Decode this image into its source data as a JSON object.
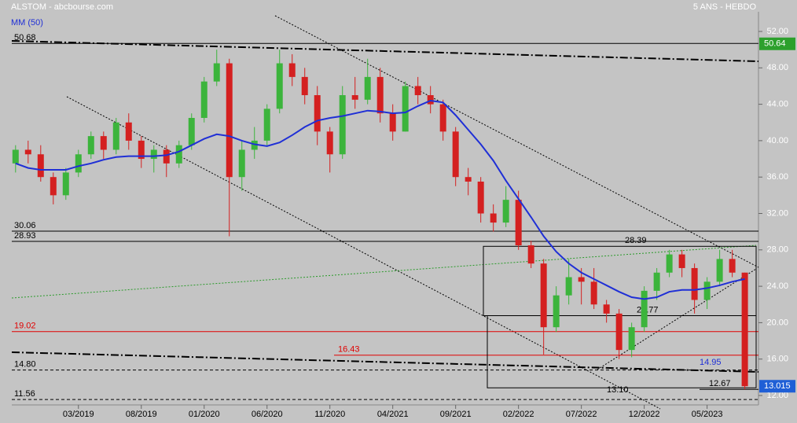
{
  "chart_data": {
    "type": "candlestick",
    "title": "ALSTOM - abcbourse.com",
    "subtitle": "5 ANS - HEBDO",
    "up_color": "#3cb43c",
    "down_color": "#d42020",
    "x": [
      -3,
      -2,
      -1,
      0,
      1,
      2,
      3,
      4,
      5,
      6,
      7,
      8,
      9,
      10,
      11,
      12,
      13,
      14,
      15,
      16,
      17,
      18,
      19,
      20,
      21,
      22,
      23,
      24,
      25,
      26,
      27,
      28,
      29,
      30,
      31,
      32,
      33,
      34,
      35,
      36,
      37,
      38,
      39,
      40,
      41,
      42,
      43,
      44,
      45,
      46,
      47,
      48,
      49,
      50,
      51,
      52,
      53,
      54,
      55
    ],
    "open": [
      37.5,
      39,
      38.5,
      36,
      34,
      36.5,
      38.5,
      40.5,
      39,
      42,
      40,
      38,
      39,
      37.5,
      39.5,
      42.5,
      46.5,
      48.5,
      36,
      39,
      40,
      43.5,
      48.5,
      47,
      45,
      41,
      38.5,
      45,
      44.5,
      47,
      43,
      41,
      46,
      45,
      44,
      41,
      36,
      35.5,
      32,
      31,
      33.5,
      28.5,
      26.5,
      19.5,
      23,
      25,
      24.5,
      22,
      21,
      17,
      19.5,
      23.5,
      25.5,
      27.5,
      26,
      22.5,
      24.5,
      27,
      25.5
    ],
    "high": [
      39.5,
      40,
      39.5,
      36.5,
      37,
      39,
      41,
      41,
      42.5,
      43,
      40.5,
      39.5,
      39.5,
      40,
      43,
      47,
      50,
      49,
      40,
      41.5,
      44,
      50,
      49.5,
      48,
      46,
      41.5,
      46,
      47,
      49,
      48,
      44,
      46.5,
      47,
      46,
      44.5,
      41.5,
      37,
      36,
      33,
      35,
      34.5,
      29,
      27,
      24,
      27,
      26,
      26,
      22.5,
      21.5,
      20,
      24,
      26,
      28,
      28,
      26.5,
      25,
      28,
      28,
      25.5
    ],
    "low": [
      36.5,
      37.5,
      35.5,
      33,
      33.5,
      36,
      38,
      38,
      38.5,
      39,
      37,
      36.5,
      36,
      37,
      39,
      42,
      46,
      29.5,
      34.5,
      38,
      39.5,
      43,
      46,
      44,
      39.5,
      36.5,
      38,
      43.5,
      44,
      42,
      40,
      41,
      44,
      43,
      40,
      35,
      34,
      31,
      30,
      30.5,
      28,
      26,
      16.5,
      19,
      22,
      22,
      21.5,
      20,
      16,
      16.2,
      19,
      22.5,
      25,
      25,
      21,
      21.5,
      24,
      25,
      12.67
    ],
    "close": [
      39,
      38.5,
      36,
      34,
      36.5,
      38.5,
      40.5,
      39,
      42,
      40,
      38,
      39,
      37.5,
      39.5,
      42.5,
      46.5,
      48.5,
      36,
      39,
      40,
      43.5,
      48.5,
      47,
      45,
      41,
      38.5,
      45,
      44.5,
      47,
      43,
      41,
      46,
      45,
      44,
      41,
      36,
      35.5,
      32,
      31,
      33.5,
      28.5,
      26.5,
      19.5,
      23,
      25,
      24.5,
      22,
      21,
      17,
      19.5,
      23.5,
      25.5,
      27.5,
      26,
      22.5,
      24.5,
      27,
      25.5,
      13.015
    ],
    "series": [
      {
        "name": "MM (50)",
        "color": "#1f2fd6",
        "values": [
          37.5,
          37,
          36.8,
          36.8,
          36.8,
          37.2,
          37.5,
          37.9,
          38.2,
          38.3,
          38.3,
          38.3,
          38.4,
          38.8,
          39.5,
          40.2,
          40.7,
          40.5,
          40,
          39.6,
          39.4,
          39.8,
          40.6,
          41.5,
          42.2,
          42.5,
          42.7,
          43,
          43.3,
          43.2,
          43,
          43.1,
          43.8,
          44.4,
          44.2,
          42.8,
          41.2,
          39.6,
          37.8,
          35.6,
          33.6,
          31.6,
          29.5,
          27.8,
          26.5,
          25.5,
          24.8,
          24.1,
          23.4,
          22.8,
          22.6,
          22.8,
          23.4,
          23.6,
          23.6,
          23.8,
          24.1,
          24.5,
          24.8
        ]
      }
    ],
    "xlim": [
      -3.3,
      55.9
    ],
    "xticks": [
      {
        "value": 2,
        "label": "03/2019"
      },
      {
        "value": 7,
        "label": "08/2019"
      },
      {
        "value": 12,
        "label": "01/2020"
      },
      {
        "value": 17,
        "label": "06/2020"
      },
      {
        "value": 22,
        "label": "11/2020"
      },
      {
        "value": 27,
        "label": "04/2021"
      },
      {
        "value": 32,
        "label": "09/2021"
      },
      {
        "value": 37,
        "label": "02/2022"
      },
      {
        "value": 42,
        "label": "07/2022"
      },
      {
        "value": 47,
        "label": "12/2022"
      },
      {
        "value": 52,
        "label": "05/2023"
      }
    ],
    "ylim": [
      12,
      52
    ],
    "yticks": [
      {
        "value": 12,
        "label": "12.00"
      },
      {
        "value": 16,
        "label": "16.00"
      },
      {
        "value": 20,
        "label": "20.00"
      },
      {
        "value": 24,
        "label": "24.00"
      },
      {
        "value": 28,
        "label": "28.00"
      },
      {
        "value": 32,
        "label": "32.00"
      },
      {
        "value": 36,
        "label": "36.00"
      },
      {
        "value": 40,
        "label": "40.00"
      },
      {
        "value": 44,
        "label": "44.00"
      },
      {
        "value": 48,
        "label": "48.00"
      },
      {
        "value": 52,
        "label": "52.00"
      }
    ],
    "price_tags": [
      {
        "value": 50.64,
        "label": "50.64",
        "color": "#2ca02c"
      },
      {
        "value": 13.015,
        "label": "13.015",
        "color": "#1f5fd6"
      }
    ],
    "annotations": [
      {
        "value": 50.68,
        "label": "50.68",
        "color": "#000000"
      },
      {
        "value": 30.06,
        "label": "30.06",
        "color": "#000000"
      },
      {
        "value": 28.93,
        "label": "28.93",
        "color": "#000000"
      },
      {
        "value": 28.39,
        "label": "28.39",
        "color": "#000000"
      },
      {
        "value": 20.77,
        "label": "20.77",
        "color": "#000000"
      },
      {
        "value": 19.02,
        "label": "19.02",
        "color": "#e00000"
      },
      {
        "value": 16.43,
        "label": "16.43",
        "color": "#e00000"
      },
      {
        "value": 14.8,
        "label": "14.80",
        "color": "#000000"
      },
      {
        "value": 14.95,
        "label": "14.95",
        "color": "#1f2fd6"
      },
      {
        "value": 13.1,
        "label": "13.10",
        "color": "#000000"
      },
      {
        "value": 12.67,
        "label": "12.67",
        "color": "#000000"
      },
      {
        "value": 11.56,
        "label": "11.56",
        "color": "#000000"
      }
    ]
  }
}
